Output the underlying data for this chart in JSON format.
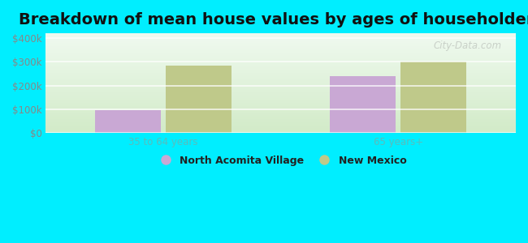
{
  "title": "Breakdown of mean house values by ages of householders",
  "title_fontsize": 14,
  "title_fontweight": "bold",
  "background_color": "#00eeff",
  "plot_bg_top": "#f0f8f0",
  "plot_bg_bottom": "#d8f0d0",
  "categories": [
    "35 to 64 years",
    "65 years+"
  ],
  "series": {
    "North Acomita Village": [
      95000,
      240000
    ],
    "New Mexico": [
      285000,
      300000
    ]
  },
  "bar_colors": {
    "North Acomita Village": "#c9a8d4",
    "New Mexico": "#bfc98a"
  },
  "ylim": [
    0,
    420000
  ],
  "yticks": [
    0,
    100000,
    200000,
    300000,
    400000
  ],
  "ytick_labels": [
    "$0",
    "$100k",
    "$200k",
    "$300k",
    "$400k"
  ],
  "xtick_color": "#5abcbc",
  "ytick_color": "#888888",
  "legend_fontsize": 9,
  "bar_width": 0.28,
  "watermark": "City-Data.com",
  "watermark_alpha": 0.35
}
